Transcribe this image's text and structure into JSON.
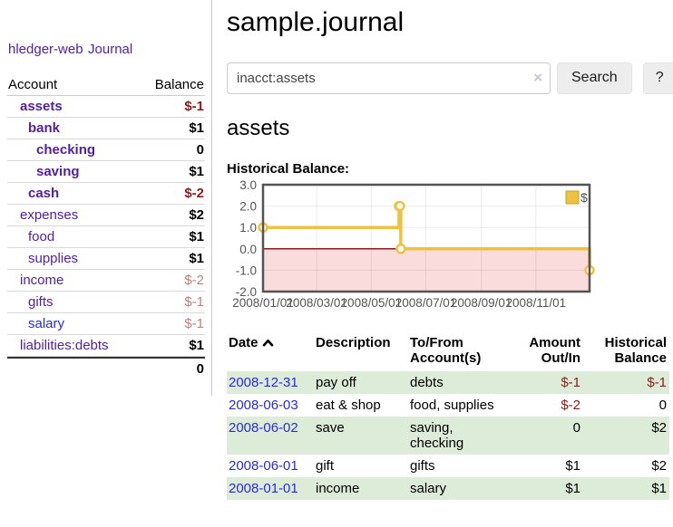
{
  "app": {
    "brand": "hledger-web"
  },
  "sidebar": {
    "journal_link": "Journal",
    "accounts_header": {
      "account": "Account",
      "balance": "Balance"
    },
    "accounts": [
      {
        "name": "assets",
        "balance": "$-1"
      },
      {
        "name": "bank",
        "balance": "$1"
      },
      {
        "name": "checking",
        "balance": "0"
      },
      {
        "name": "saving",
        "balance": "$1"
      },
      {
        "name": "cash",
        "balance": "$-2"
      },
      {
        "name": "expenses",
        "balance": "$2"
      },
      {
        "name": "food",
        "balance": "$1"
      },
      {
        "name": "supplies",
        "balance": "$1"
      },
      {
        "name": "income",
        "balance": "$-2"
      },
      {
        "name": "gifts",
        "balance": "$-1"
      },
      {
        "name": "salary",
        "balance": "$-1"
      },
      {
        "name": "liabilities:debts",
        "balance": "$1"
      }
    ],
    "total": "0"
  },
  "main": {
    "title": "sample.journal",
    "search": {
      "value": "inacct:assets",
      "clear_icon": "×",
      "button_label": "Search",
      "help_label": "?"
    },
    "account_heading": "assets",
    "chart_heading": "Historical Balance:"
  },
  "chart_data": {
    "type": "line",
    "title": "Historical Balance",
    "step": true,
    "series": [
      {
        "name": "$",
        "color": "#edc240",
        "points": [
          [
            "2008-01-01",
            1
          ],
          [
            "2008-06-01",
            2
          ],
          [
            "2008-06-02",
            2
          ],
          [
            "2008-06-03",
            0
          ],
          [
            "2008-12-31",
            -1
          ]
        ]
      }
    ],
    "ylim": [
      -2,
      3
    ],
    "yticks": [
      "3.0",
      "2.0",
      "1.0",
      "0.0",
      "-1.0",
      "-2.0"
    ],
    "xticks": [
      "2008/01/01",
      "2008/03/01",
      "2008/05/01",
      "2008/07/01",
      "2008/09/01",
      "2008/11/01"
    ],
    "legend": "$",
    "legend_position": "top-right",
    "grid": true,
    "negative_region_fill": "#fbdcdc",
    "zero_line_color": "#8b1a1a",
    "axis_text_color": "#545454",
    "border_color": "#545454"
  },
  "register": {
    "headers": {
      "date": "Date",
      "description": "Description",
      "accounts": "To/From\nAccount(s)",
      "amount": "Amount\nOut/In",
      "balance": "Historical\nBalance"
    },
    "sort_icon": "chevron-up",
    "rows": [
      {
        "date": "2008-12-31",
        "description": "pay off",
        "accounts": "debts",
        "amount": "$-1",
        "balance": "$-1"
      },
      {
        "date": "2008-06-03",
        "description": "eat & shop",
        "accounts": "food, supplies",
        "amount": "$-2",
        "balance": "0"
      },
      {
        "date": "2008-06-02",
        "description": "save",
        "accounts": "saving,\nchecking",
        "amount": "0",
        "balance": "$2"
      },
      {
        "date": "2008-06-01",
        "description": "gift",
        "accounts": "gifts",
        "amount": "$1",
        "balance": "$2"
      },
      {
        "date": "2008-01-01",
        "description": "income",
        "accounts": "salary",
        "amount": "$1",
        "balance": "$1"
      }
    ]
  }
}
